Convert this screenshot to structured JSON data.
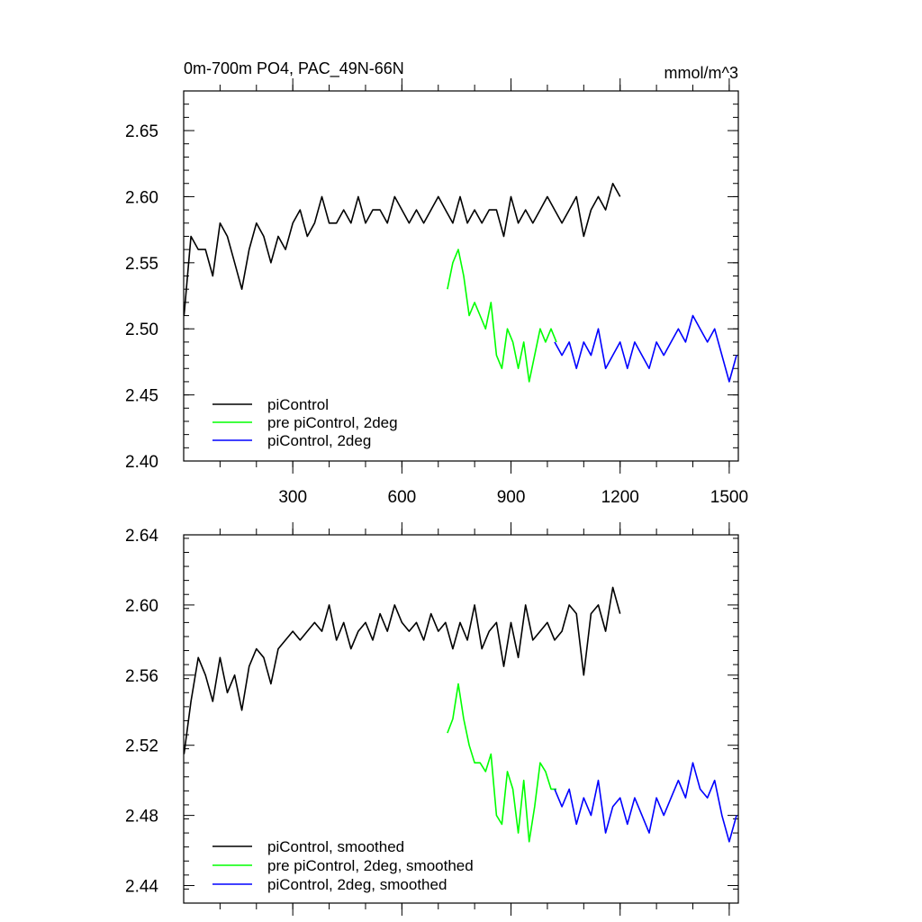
{
  "chart_data": [
    {
      "type": "line",
      "title": "0m-700m PO4, PAC_49N-66N",
      "units": "mmol/m^3",
      "xlabel": "",
      "ylabel": "",
      "xlim": [
        0,
        1525
      ],
      "ylim": [
        2.4,
        2.68
      ],
      "x_ticks": [
        300,
        600,
        900,
        1200,
        1500
      ],
      "y_ticks": [
        2.4,
        2.45,
        2.5,
        2.55,
        2.6,
        2.65
      ],
      "x_ticks_labeled": true,
      "grid": false,
      "legend_position": "bottom-left",
      "series": [
        {
          "name": "piControl",
          "color": "#000000",
          "x": [
            1,
            20,
            40,
            60,
            80,
            100,
            120,
            140,
            160,
            180,
            200,
            220,
            240,
            260,
            280,
            300,
            320,
            340,
            360,
            380,
            400,
            420,
            440,
            460,
            480,
            500,
            520,
            540,
            560,
            580,
            600,
            620,
            640,
            660,
            680,
            700,
            720,
            740,
            760,
            780,
            800,
            820,
            840,
            860,
            880,
            900,
            920,
            940,
            960,
            980,
            1000,
            1020,
            1040,
            1060,
            1080,
            1100,
            1120,
            1140,
            1160,
            1180,
            1200
          ],
          "y": [
            2.51,
            2.57,
            2.56,
            2.56,
            2.54,
            2.58,
            2.57,
            2.55,
            2.53,
            2.56,
            2.58,
            2.57,
            2.55,
            2.57,
            2.56,
            2.58,
            2.59,
            2.57,
            2.58,
            2.6,
            2.58,
            2.58,
            2.59,
            2.58,
            2.6,
            2.58,
            2.59,
            2.59,
            2.58,
            2.6,
            2.59,
            2.58,
            2.59,
            2.58,
            2.59,
            2.6,
            2.59,
            2.58,
            2.6,
            2.58,
            2.59,
            2.58,
            2.59,
            2.59,
            2.57,
            2.6,
            2.58,
            2.59,
            2.58,
            2.59,
            2.6,
            2.59,
            2.58,
            2.59,
            2.6,
            2.57,
            2.59,
            2.6,
            2.59,
            2.61,
            2.6
          ]
        },
        {
          "name": "pre piControl, 2deg",
          "color": "#00ff00",
          "x": [
            725,
            740,
            755,
            770,
            785,
            800,
            815,
            830,
            845,
            860,
            875,
            890,
            905,
            920,
            935,
            950,
            965,
            980,
            995,
            1010,
            1025
          ],
          "y": [
            2.53,
            2.55,
            2.56,
            2.54,
            2.51,
            2.52,
            2.51,
            2.5,
            2.52,
            2.48,
            2.47,
            2.5,
            2.49,
            2.47,
            2.49,
            2.46,
            2.48,
            2.5,
            2.49,
            2.5,
            2.49
          ]
        },
        {
          "name": "piControl, 2deg",
          "color": "#0000ff",
          "x": [
            1020,
            1040,
            1060,
            1080,
            1100,
            1120,
            1140,
            1160,
            1180,
            1200,
            1220,
            1240,
            1260,
            1280,
            1300,
            1320,
            1340,
            1360,
            1380,
            1400,
            1420,
            1440,
            1460,
            1480,
            1500,
            1520
          ],
          "y": [
            2.49,
            2.48,
            2.49,
            2.47,
            2.49,
            2.48,
            2.5,
            2.47,
            2.48,
            2.49,
            2.47,
            2.49,
            2.48,
            2.47,
            2.49,
            2.48,
            2.49,
            2.5,
            2.49,
            2.51,
            2.5,
            2.49,
            2.5,
            2.48,
            2.46,
            2.48
          ]
        }
      ]
    },
    {
      "type": "line",
      "title": "",
      "xlabel": "",
      "ylabel": "",
      "xlim": [
        0,
        1525
      ],
      "ylim": [
        2.43,
        2.64
      ],
      "x_ticks": [
        300,
        600,
        900,
        1200,
        1500
      ],
      "y_ticks": [
        2.44,
        2.48,
        2.52,
        2.56,
        2.6,
        2.64
      ],
      "x_ticks_labeled": false,
      "grid": false,
      "legend_position": "bottom-left",
      "series": [
        {
          "name": "piControl, smoothed",
          "color": "#000000",
          "x": [
            1,
            20,
            40,
            60,
            80,
            100,
            120,
            140,
            160,
            180,
            200,
            220,
            240,
            260,
            280,
            300,
            320,
            340,
            360,
            380,
            400,
            420,
            440,
            460,
            480,
            500,
            520,
            540,
            560,
            580,
            600,
            620,
            640,
            660,
            680,
            700,
            720,
            740,
            760,
            780,
            800,
            820,
            840,
            860,
            880,
            900,
            920,
            940,
            960,
            980,
            1000,
            1020,
            1040,
            1060,
            1080,
            1100,
            1120,
            1140,
            1160,
            1180,
            1200
          ],
          "y": [
            2.515,
            2.545,
            2.57,
            2.56,
            2.545,
            2.57,
            2.55,
            2.56,
            2.54,
            2.565,
            2.575,
            2.57,
            2.555,
            2.575,
            2.58,
            2.585,
            2.58,
            2.585,
            2.59,
            2.585,
            2.6,
            2.58,
            2.59,
            2.575,
            2.585,
            2.59,
            2.58,
            2.595,
            2.585,
            2.6,
            2.59,
            2.585,
            2.59,
            2.58,
            2.595,
            2.585,
            2.59,
            2.575,
            2.59,
            2.58,
            2.6,
            2.575,
            2.585,
            2.59,
            2.565,
            2.59,
            2.57,
            2.6,
            2.58,
            2.585,
            2.59,
            2.58,
            2.585,
            2.6,
            2.595,
            2.56,
            2.595,
            2.6,
            2.585,
            2.61,
            2.595
          ]
        },
        {
          "name": "pre piControl, 2deg, smoothed",
          "color": "#00ff00",
          "x": [
            725,
            740,
            755,
            770,
            785,
            800,
            815,
            830,
            845,
            860,
            875,
            890,
            905,
            920,
            935,
            950,
            965,
            980,
            995,
            1010,
            1025
          ],
          "y": [
            2.527,
            2.535,
            2.555,
            2.535,
            2.52,
            2.51,
            2.51,
            2.505,
            2.515,
            2.48,
            2.475,
            2.505,
            2.495,
            2.47,
            2.5,
            2.465,
            2.485,
            2.51,
            2.505,
            2.495,
            2.495
          ]
        },
        {
          "name": "piControl, 2deg, smoothed",
          "color": "#0000ff",
          "x": [
            1020,
            1040,
            1060,
            1080,
            1100,
            1120,
            1140,
            1160,
            1180,
            1200,
            1220,
            1240,
            1260,
            1280,
            1300,
            1320,
            1340,
            1360,
            1380,
            1400,
            1420,
            1440,
            1460,
            1480,
            1500,
            1520
          ],
          "y": [
            2.495,
            2.485,
            2.495,
            2.475,
            2.49,
            2.48,
            2.5,
            2.47,
            2.485,
            2.49,
            2.475,
            2.49,
            2.48,
            2.47,
            2.49,
            2.48,
            2.49,
            2.5,
            2.49,
            2.51,
            2.495,
            2.49,
            2.5,
            2.48,
            2.465,
            2.48
          ]
        }
      ]
    }
  ]
}
